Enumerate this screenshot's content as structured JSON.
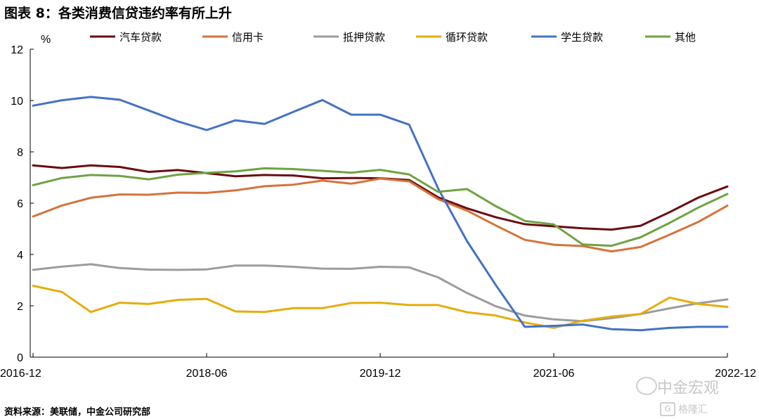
{
  "page": {
    "title": "图表 8：各类消费信贷违约率有所上升",
    "source": "资料来源：美联储，中金公司研究部",
    "watermark": {
      "line1": "中金宏观",
      "line2": "格隆汇"
    }
  },
  "chart_data": {
    "type": "line",
    "title": "",
    "xlabel": "",
    "ylabel": "%",
    "ylim": [
      0,
      12
    ],
    "yticks": [
      0,
      2,
      4,
      6,
      8,
      10,
      12
    ],
    "x": [
      "2016-12",
      "2017-03",
      "2017-06",
      "2017-09",
      "2017-12",
      "2018-03",
      "2018-06",
      "2018-09",
      "2018-12",
      "2019-03",
      "2019-06",
      "2019-09",
      "2019-12",
      "2020-03",
      "2020-06",
      "2020-09",
      "2020-12",
      "2021-03",
      "2021-06",
      "2021-09",
      "2021-12",
      "2022-03",
      "2022-06",
      "2022-09",
      "2022-12"
    ],
    "xtick_labels": [
      "2016-12",
      "2018-06",
      "2019-12",
      "2021-06",
      "2022-12"
    ],
    "grid": false,
    "legend_position": "top",
    "series": [
      {
        "name": "汽车贷款",
        "color": "#6b0a10",
        "values": [
          7.47,
          7.37,
          7.47,
          7.41,
          7.22,
          7.29,
          7.17,
          7.05,
          7.1,
          7.08,
          6.97,
          6.98,
          6.97,
          6.9,
          6.23,
          5.8,
          5.45,
          5.18,
          5.1,
          5.02,
          4.97,
          5.12,
          5.65,
          6.22,
          6.65
        ]
      },
      {
        "name": "信用卡",
        "color": "#d4733a",
        "values": [
          5.48,
          5.91,
          6.21,
          6.34,
          6.33,
          6.41,
          6.4,
          6.5,
          6.66,
          6.72,
          6.88,
          6.76,
          6.96,
          6.85,
          6.16,
          5.71,
          5.13,
          4.57,
          4.38,
          4.33,
          4.12,
          4.29,
          4.77,
          5.27,
          5.9
        ]
      },
      {
        "name": "抵押贷款",
        "color": "#9c9c9c",
        "values": [
          3.4,
          3.53,
          3.62,
          3.47,
          3.41,
          3.4,
          3.42,
          3.57,
          3.57,
          3.52,
          3.45,
          3.44,
          3.52,
          3.5,
          3.11,
          2.5,
          1.98,
          1.62,
          1.47,
          1.4,
          1.52,
          1.68,
          1.9,
          2.1,
          2.25
        ]
      },
      {
        "name": "循环贷款",
        "color": "#e5ad0c",
        "values": [
          2.78,
          2.54,
          1.76,
          2.12,
          2.07,
          2.23,
          2.27,
          1.78,
          1.76,
          1.91,
          1.91,
          2.11,
          2.12,
          2.03,
          2.03,
          1.75,
          1.62,
          1.35,
          1.14,
          1.42,
          1.58,
          1.68,
          2.32,
          2.07,
          1.96
        ]
      },
      {
        "name": "学生贷款",
        "color": "#4472c4",
        "values": [
          9.8,
          10.01,
          10.14,
          10.03,
          9.61,
          9.19,
          8.85,
          9.23,
          9.09,
          9.56,
          10.02,
          9.45,
          9.45,
          9.06,
          6.58,
          4.52,
          2.8,
          1.18,
          1.22,
          1.27,
          1.09,
          1.05,
          1.14,
          1.18,
          1.18
        ]
      },
      {
        "name": "其他",
        "color": "#6ea341",
        "values": [
          6.7,
          6.98,
          7.1,
          7.06,
          6.93,
          7.11,
          7.18,
          7.24,
          7.36,
          7.33,
          7.26,
          7.19,
          7.3,
          7.12,
          6.44,
          6.55,
          5.88,
          5.31,
          5.17,
          4.39,
          4.34,
          4.67,
          5.23,
          5.83,
          6.36
        ]
      }
    ]
  }
}
